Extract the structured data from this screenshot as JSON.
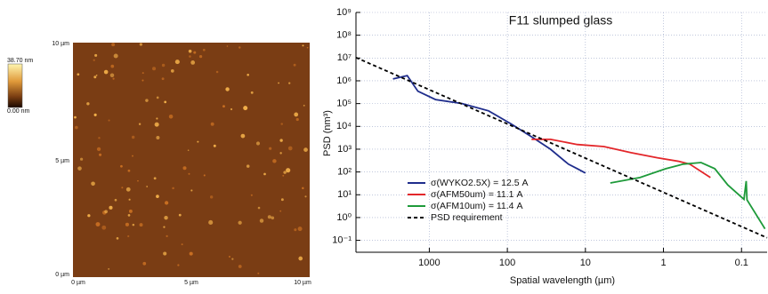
{
  "afm_image": {
    "colorbar_max": "38.70 nm",
    "colorbar_min": "0.00 nm",
    "y_labels": [
      "10 µm",
      "5 µm",
      "0 µm"
    ],
    "x_labels": [
      "0 µm",
      "5 µm",
      "10 µm"
    ]
  },
  "chart_data": {
    "type": "line",
    "title": "F11 slumped glass",
    "x_label": "Spatial wavelength (µm)",
    "y_label": "PSD (nm³)",
    "x_scale": "log",
    "y_scale": "log",
    "grid": true,
    "legend": "lower-left",
    "xlim": [
      8700,
      0.047
    ],
    "ylim": [
      0.03,
      1000000000
    ],
    "xticks": [
      1000,
      100,
      10,
      1,
      0.1
    ],
    "yticks": [
      {
        "value": 1000000000,
        "label": "10⁹"
      },
      {
        "value": 100000000,
        "label": "10⁸"
      },
      {
        "value": 10000000,
        "label": "10⁷"
      },
      {
        "value": 1000000,
        "label": "10⁶"
      },
      {
        "value": 100000,
        "label": "10⁵"
      },
      {
        "value": 10000,
        "label": "10⁴"
      },
      {
        "value": 1000,
        "label": "10³"
      },
      {
        "value": 100,
        "label": "10²"
      },
      {
        "value": 10,
        "label": "10¹"
      },
      {
        "value": 1,
        "label": "10⁰"
      },
      {
        "value": 0.1,
        "label": "10⁻¹"
      }
    ],
    "series": [
      {
        "name": "σ(WYKO2.5X) = 12.5 A",
        "color": "#1f2d8c",
        "x": [
          2920,
          1920,
          1400,
          833,
          380,
          174,
          90,
          47,
          28,
          16.5,
          12.7,
          10
        ],
        "values": [
          1200000,
          1700000,
          350000,
          150000,
          100000,
          48000,
          13000,
          3200,
          1000,
          220,
          140,
          90
        ]
      },
      {
        "name": "σ(AFM50um) = 11.1 A",
        "color": "#e3262a",
        "x": [
          49,
          28,
          12.7,
          5.8,
          2.6,
          1.2,
          0.63,
          0.46,
          0.25
        ],
        "values": [
          2700,
          2700,
          1600,
          1300,
          700,
          420,
          290,
          220,
          57
        ]
      },
      {
        "name": "σ(AFM10um) = 11.4  A",
        "color": "#1e9a3a",
        "x": [
          4.8,
          2.0,
          0.93,
          0.56,
          0.33,
          0.22,
          0.15,
          0.093,
          0.087,
          0.085,
          0.05
        ],
        "values": [
          33,
          57,
          140,
          220,
          260,
          140,
          27,
          6.3,
          40,
          6,
          0.32
        ]
      },
      {
        "name": "PSD requirement",
        "color": "#000000",
        "line_style": "dashed",
        "x": [
          8700,
          0.047
        ],
        "values": [
          10500000,
          0.13
        ]
      }
    ]
  }
}
